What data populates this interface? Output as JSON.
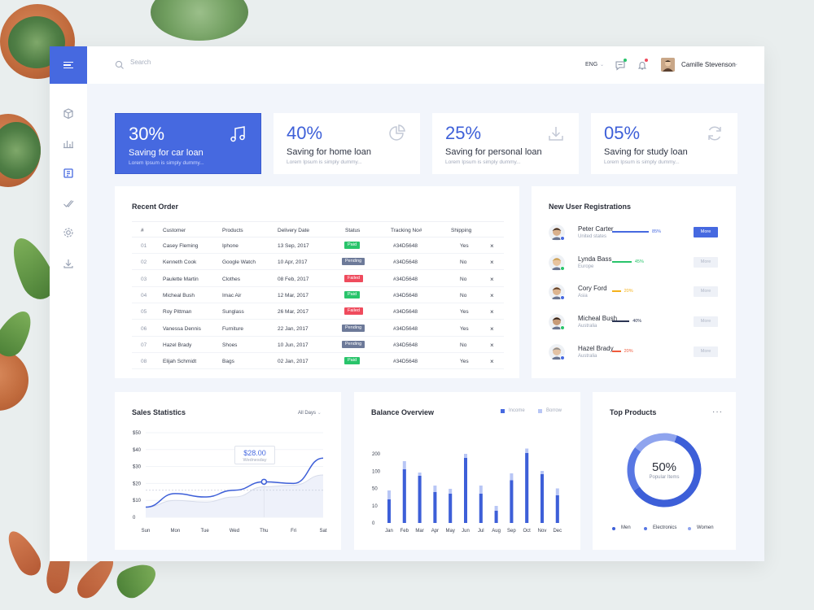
{
  "colors": {
    "accent": "#4669e0",
    "paid": "#29c46b",
    "pending": "#6d7a99",
    "failed": "#ef4b5d",
    "light_accent": "#b8c6f5"
  },
  "topbar": {
    "search_placeholder": "Search",
    "language": "ENG",
    "user_name": "Camille Stevenson"
  },
  "sidebar": {
    "icons": [
      "cube-icon",
      "bar-chart-icon",
      "list-icon",
      "checks-icon",
      "gear-icon",
      "download-icon"
    ]
  },
  "stats": [
    {
      "value": "30%",
      "label": "Saving for car loan",
      "sub": "Lorem Ipsum is simply dummy...",
      "icon": "music-icon"
    },
    {
      "value": "40%",
      "label": "Saving for home loan",
      "sub": "Lorem Ipsum is simply dummy...",
      "icon": "pie-chart-icon"
    },
    {
      "value": "25%",
      "label": "Saving for personal loan",
      "sub": "Lorem Ipsum is simply dummy...",
      "icon": "download-icon"
    },
    {
      "value": "05%",
      "label": "Saving for study loan",
      "sub": "Lorem Ipsum is simply dummy...",
      "icon": "refresh-icon"
    }
  ],
  "orders": {
    "title": "Recent Order",
    "columns": [
      "#",
      "Customer",
      "Products",
      "Delivery Date",
      "Status",
      "Tracking No#",
      "Shipping"
    ],
    "rows": [
      {
        "num": "01",
        "customer": "Casey Fleming",
        "product": "Iphone",
        "date": "13 Sep, 2017",
        "status": "Paid",
        "tracking": "#34D5648",
        "shipping": "Yes"
      },
      {
        "num": "02",
        "customer": "Kenneth Cook",
        "product": "Google Watch",
        "date": "10 Apr, 2017",
        "status": "Pending",
        "tracking": "#34D5648",
        "shipping": "No"
      },
      {
        "num": "03",
        "customer": "Paulette Martin",
        "product": "Clothes",
        "date": "08 Feb, 2017",
        "status": "Failed",
        "tracking": "#34D5648",
        "shipping": "No"
      },
      {
        "num": "04",
        "customer": "Micheal Bush",
        "product": "Imac Air",
        "date": "12 Mar, 2017",
        "status": "Paid",
        "tracking": "#34D5648",
        "shipping": "No"
      },
      {
        "num": "05",
        "customer": "Roy Pittman",
        "product": "Sunglass",
        "date": "26 Mar, 2017",
        "status": "Failed",
        "tracking": "#34D5648",
        "shipping": "Yes"
      },
      {
        "num": "06",
        "customer": "Vanessa Dennis",
        "product": "Furniture",
        "date": "22 Jan, 2017",
        "status": "Pending",
        "tracking": "#34D5648",
        "shipping": "Yes"
      },
      {
        "num": "07",
        "customer": "Hazel Brady",
        "product": "Shoes",
        "date": "10 Jun, 2017",
        "status": "Pending",
        "tracking": "#34D5648",
        "shipping": "No"
      },
      {
        "num": "08",
        "customer": "Elijah Schmidt",
        "product": "Bags",
        "date": "02 Jan, 2017",
        "status": "Paid",
        "tracking": "#34D5648",
        "shipping": "Yes"
      }
    ]
  },
  "registrations": {
    "title": "New User Registrations",
    "more_label": "More",
    "users": [
      {
        "name": "Peter Carter",
        "location": "United states",
        "percent": 85,
        "percent_label": "85%",
        "color": "#4669e0",
        "status_color": "#4669e0",
        "active": true
      },
      {
        "name": "Lynda Bass",
        "location": "Europe",
        "percent": 45,
        "percent_label": "45%",
        "color": "#29c46b",
        "status_color": "#29c46b",
        "active": false
      },
      {
        "name": "Cory Ford",
        "location": "Asia",
        "percent": 20,
        "percent_label": "20%",
        "color": "#f5b21b",
        "status_color": "#4669e0",
        "active": false
      },
      {
        "name": "Micheal Bush",
        "location": "Australia",
        "percent": 40,
        "percent_label": "40%",
        "color": "#2b3553",
        "status_color": "#29c46b",
        "active": false
      },
      {
        "name": "Hazel Brady",
        "location": "Australia",
        "percent": 20,
        "percent_label": "20%",
        "color": "#ef5a3c",
        "status_color": "#4669e0",
        "active": false
      }
    ]
  },
  "sales": {
    "title": "Sales Statistics",
    "filter": "All Days",
    "tooltip_value": "$28.00",
    "tooltip_label": "Wednesday"
  },
  "balance": {
    "title": "Balance Overview",
    "legend": [
      "Income",
      "Borrow"
    ]
  },
  "products": {
    "title": "Top Products",
    "center_value": "50%",
    "center_label": "Popular Items",
    "legend": [
      "Men",
      "Electronics",
      "Women"
    ]
  },
  "chart_data": [
    {
      "type": "line",
      "title": "Sales Statistics",
      "x": [
        "Sun",
        "Mon",
        "Tue",
        "Wed",
        "Thu",
        "Fri",
        "Sat"
      ],
      "y_ticks": [
        "$50",
        "$40",
        "$30",
        "$20",
        "$10",
        "0"
      ],
      "ylim": [
        0,
        50
      ],
      "series": [
        {
          "values": [
            6,
            14,
            12,
            16,
            21,
            20,
            35
          ]
        },
        {
          "values": [
            6,
            10,
            9,
            12,
            18,
            19,
            25
          ]
        }
      ],
      "reference_line": 16
    },
    {
      "type": "bar",
      "title": "Balance Overview",
      "categories": [
        "Jan",
        "Feb",
        "Mar",
        "Apr",
        "May",
        "Jun",
        "Jul",
        "Aug",
        "Sep",
        "Oct",
        "Nov",
        "Dec"
      ],
      "y_ticks": [
        "200",
        "100",
        "50",
        "10",
        "0"
      ],
      "ylim": [
        0,
        200
      ],
      "series": [
        {
          "name": "Income",
          "values": [
            58,
            132,
            116,
            76,
            72,
            160,
            72,
            30,
            105,
            172,
            120,
            68
          ]
        },
        {
          "name": "Borrow",
          "values": [
            80,
            152,
            124,
            92,
            84,
            170,
            92,
            42,
            122,
            183,
            128,
            85
          ]
        }
      ]
    },
    {
      "type": "pie",
      "title": "Top Products",
      "categories": [
        "Men",
        "Electronics",
        "Women"
      ],
      "values": [
        60,
        20,
        20
      ]
    }
  ]
}
